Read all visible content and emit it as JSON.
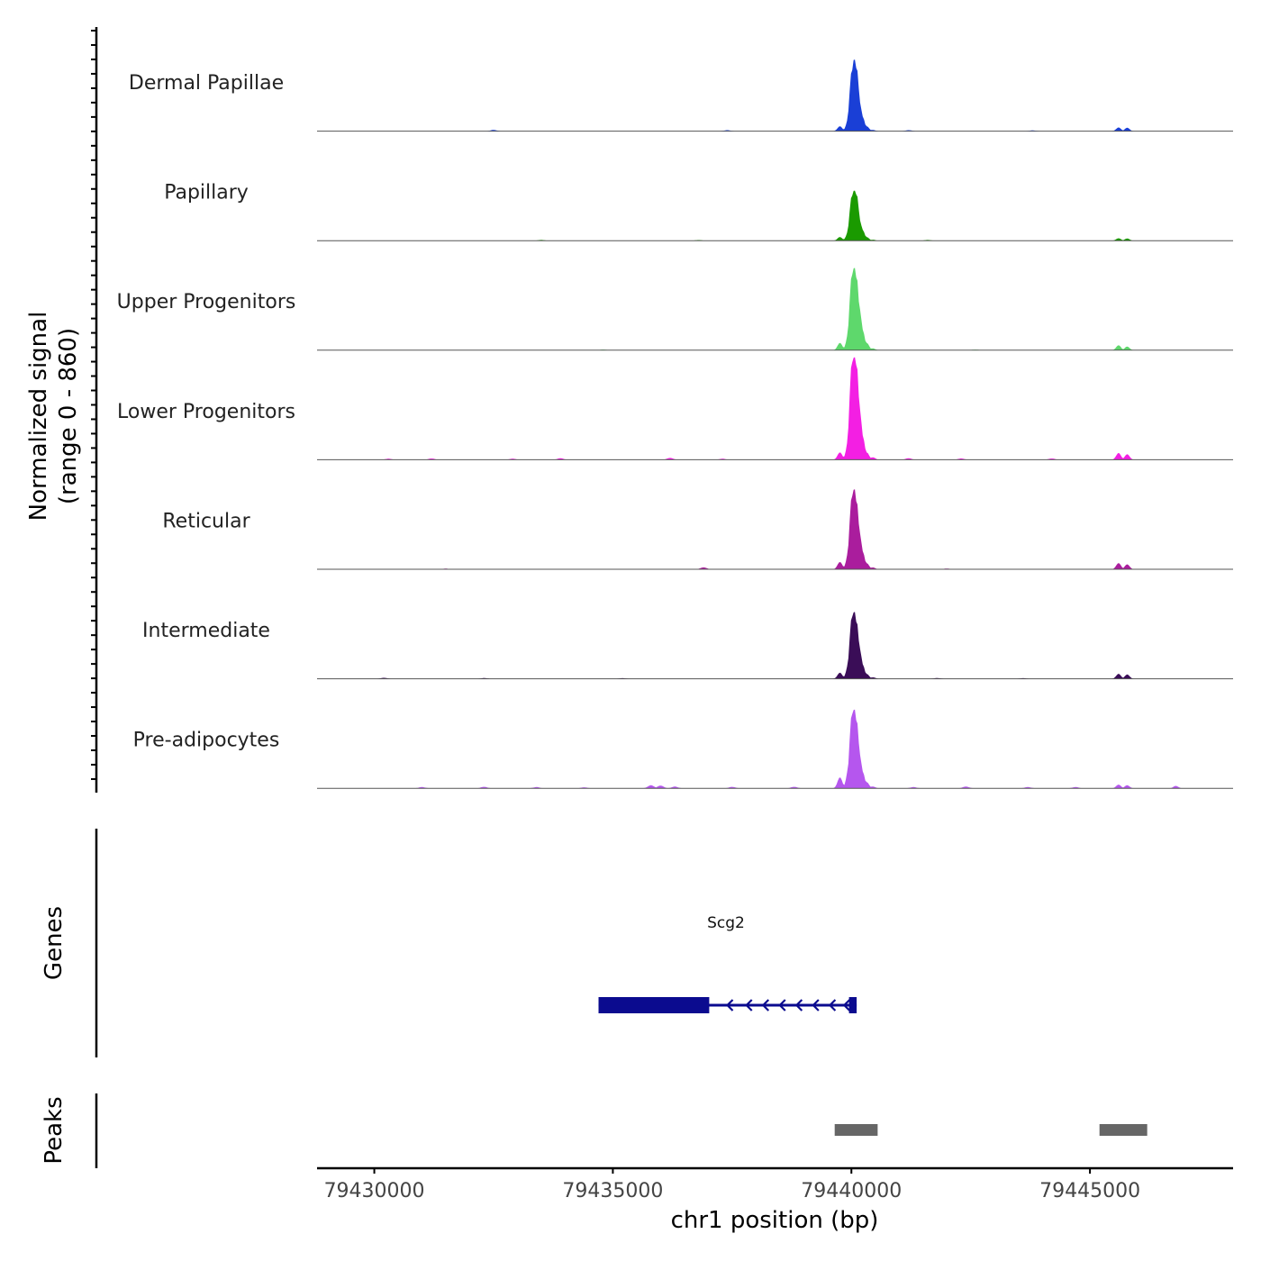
{
  "chart_data": [
    {
      "type": "area",
      "title": "",
      "ylabel_line1": "Normalized signal",
      "ylabel_line2": "(range 0 - 860)",
      "ylim": [
        0,
        860
      ],
      "xlim": [
        79428800,
        79448000
      ],
      "tracks": [
        {
          "name": "Dermal Papillae",
          "color": "#1a3fd6",
          "peaks": [
            [
              79439760,
              40
            ],
            [
              79439950,
              120
            ],
            [
              79440010,
              500
            ],
            [
              79440060,
              600
            ],
            [
              79440110,
              520
            ],
            [
              79440170,
              240
            ],
            [
              79440230,
              120
            ],
            [
              79440320,
              40
            ],
            [
              79440450,
              10
            ],
            [
              79445600,
              30
            ],
            [
              79445780,
              28
            ]
          ],
          "noise": [
            [
              79432500,
              10
            ],
            [
              79437400,
              8
            ],
            [
              79441200,
              8
            ],
            [
              79443800,
              6
            ]
          ]
        },
        {
          "name": "Papillary",
          "color": "#1a9a00",
          "peaks": [
            [
              79439760,
              30
            ],
            [
              79439950,
              90
            ],
            [
              79440010,
              370
            ],
            [
              79440060,
              420
            ],
            [
              79440110,
              380
            ],
            [
              79440170,
              170
            ],
            [
              79440230,
              90
            ],
            [
              79440320,
              30
            ],
            [
              79440450,
              8
            ],
            [
              79445600,
              20
            ],
            [
              79445780,
              18
            ]
          ],
          "noise": [
            [
              79433500,
              6
            ],
            [
              79436800,
              5
            ],
            [
              79441600,
              6
            ]
          ]
        },
        {
          "name": "Upper Progenitors",
          "color": "#5ed86c",
          "peaks": [
            [
              79439760,
              60
            ],
            [
              79439950,
              160
            ],
            [
              79440010,
              620
            ],
            [
              79440060,
              690
            ],
            [
              79440110,
              600
            ],
            [
              79440170,
              340
            ],
            [
              79440230,
              170
            ],
            [
              79440320,
              60
            ],
            [
              79440450,
              15
            ],
            [
              79445600,
              40
            ],
            [
              79445780,
              30
            ]
          ],
          "noise": [
            [
              79434800,
              5
            ],
            [
              79442600,
              5
            ]
          ]
        },
        {
          "name": "Lower Progenitors",
          "color": "#f31fe3",
          "peaks": [
            [
              79439760,
              60
            ],
            [
              79439950,
              190
            ],
            [
              79440010,
              800
            ],
            [
              79440060,
              860
            ],
            [
              79440110,
              780
            ],
            [
              79440170,
              420
            ],
            [
              79440230,
              200
            ],
            [
              79440320,
              60
            ],
            [
              79440450,
              20
            ],
            [
              79445600,
              55
            ],
            [
              79445780,
              45
            ]
          ],
          "noise": [
            [
              79430300,
              8
            ],
            [
              79431200,
              10
            ],
            [
              79432900,
              8
            ],
            [
              79433900,
              12
            ],
            [
              79436200,
              15
            ],
            [
              79437300,
              8
            ],
            [
              79441200,
              12
            ],
            [
              79442300,
              10
            ],
            [
              79444200,
              10
            ]
          ]
        },
        {
          "name": "Reticular",
          "color": "#aa1d9d",
          "peaks": [
            [
              79439760,
              60
            ],
            [
              79439950,
              160
            ],
            [
              79440010,
              600
            ],
            [
              79440060,
              670
            ],
            [
              79440110,
              560
            ],
            [
              79440170,
              300
            ],
            [
              79440230,
              150
            ],
            [
              79440320,
              50
            ],
            [
              79440450,
              15
            ],
            [
              79445600,
              50
            ],
            [
              79445780,
              40
            ]
          ],
          "noise": [
            [
              79431500,
              5
            ],
            [
              79436900,
              15
            ],
            [
              79442000,
              6
            ]
          ]
        },
        {
          "name": "Intermediate",
          "color": "#3a0d57",
          "peaks": [
            [
              79439760,
              50
            ],
            [
              79439950,
              140
            ],
            [
              79440010,
              510
            ],
            [
              79440060,
              560
            ],
            [
              79440110,
              470
            ],
            [
              79440170,
              250
            ],
            [
              79440230,
              120
            ],
            [
              79440320,
              40
            ],
            [
              79440450,
              12
            ],
            [
              79445600,
              40
            ],
            [
              79445780,
              35
            ]
          ],
          "noise": [
            [
              79430200,
              8
            ],
            [
              79432300,
              6
            ],
            [
              79435200,
              5
            ],
            [
              79441800,
              6
            ],
            [
              79443600,
              5
            ]
          ]
        },
        {
          "name": "Pre-adipocytes",
          "color": "#b556ee",
          "peaks": [
            [
              79439760,
              90
            ],
            [
              79439950,
              180
            ],
            [
              79440010,
              610
            ],
            [
              79440060,
              660
            ],
            [
              79440110,
              560
            ],
            [
              79440170,
              280
            ],
            [
              79440230,
              140
            ],
            [
              79440320,
              50
            ],
            [
              79440450,
              15
            ],
            [
              79445600,
              30
            ],
            [
              79445780,
              25
            ],
            [
              79446800,
              20
            ]
          ],
          "noise": [
            [
              79431000,
              10
            ],
            [
              79432300,
              12
            ],
            [
              79433400,
              10
            ],
            [
              79434400,
              8
            ],
            [
              79435800,
              25
            ],
            [
              79436000,
              22
            ],
            [
              79436300,
              14
            ],
            [
              79437500,
              12
            ],
            [
              79438800,
              12
            ],
            [
              79441300,
              10
            ],
            [
              79442400,
              14
            ],
            [
              79443700,
              10
            ],
            [
              79444700,
              10
            ]
          ]
        }
      ]
    },
    {
      "type": "gene-annotation",
      "ylabel": "Genes",
      "genes": [
        {
          "name": "Scg2",
          "strand": "-",
          "start": 79434700,
          "end": 79440110,
          "color": "#0b0b8f",
          "exons": [
            [
              79434700,
              79437020
            ],
            [
              79439950,
              79440110
            ]
          ],
          "arrows": [
            79437400,
            79437800,
            79438150,
            79438500,
            79438850,
            79439200,
            79439550,
            79439850
          ]
        }
      ]
    },
    {
      "type": "ranges",
      "ylabel": "Peaks",
      "color": "#666666",
      "peaks": [
        [
          79439650,
          79440550
        ],
        [
          79445200,
          79446200
        ]
      ]
    }
  ],
  "x_axis": {
    "label": "chr1 position (bp)",
    "ticks": [
      79430000,
      79435000,
      79440000,
      79445000
    ],
    "tick_labels": [
      "79430000",
      "79435000",
      "79440000",
      "79445000"
    ]
  }
}
